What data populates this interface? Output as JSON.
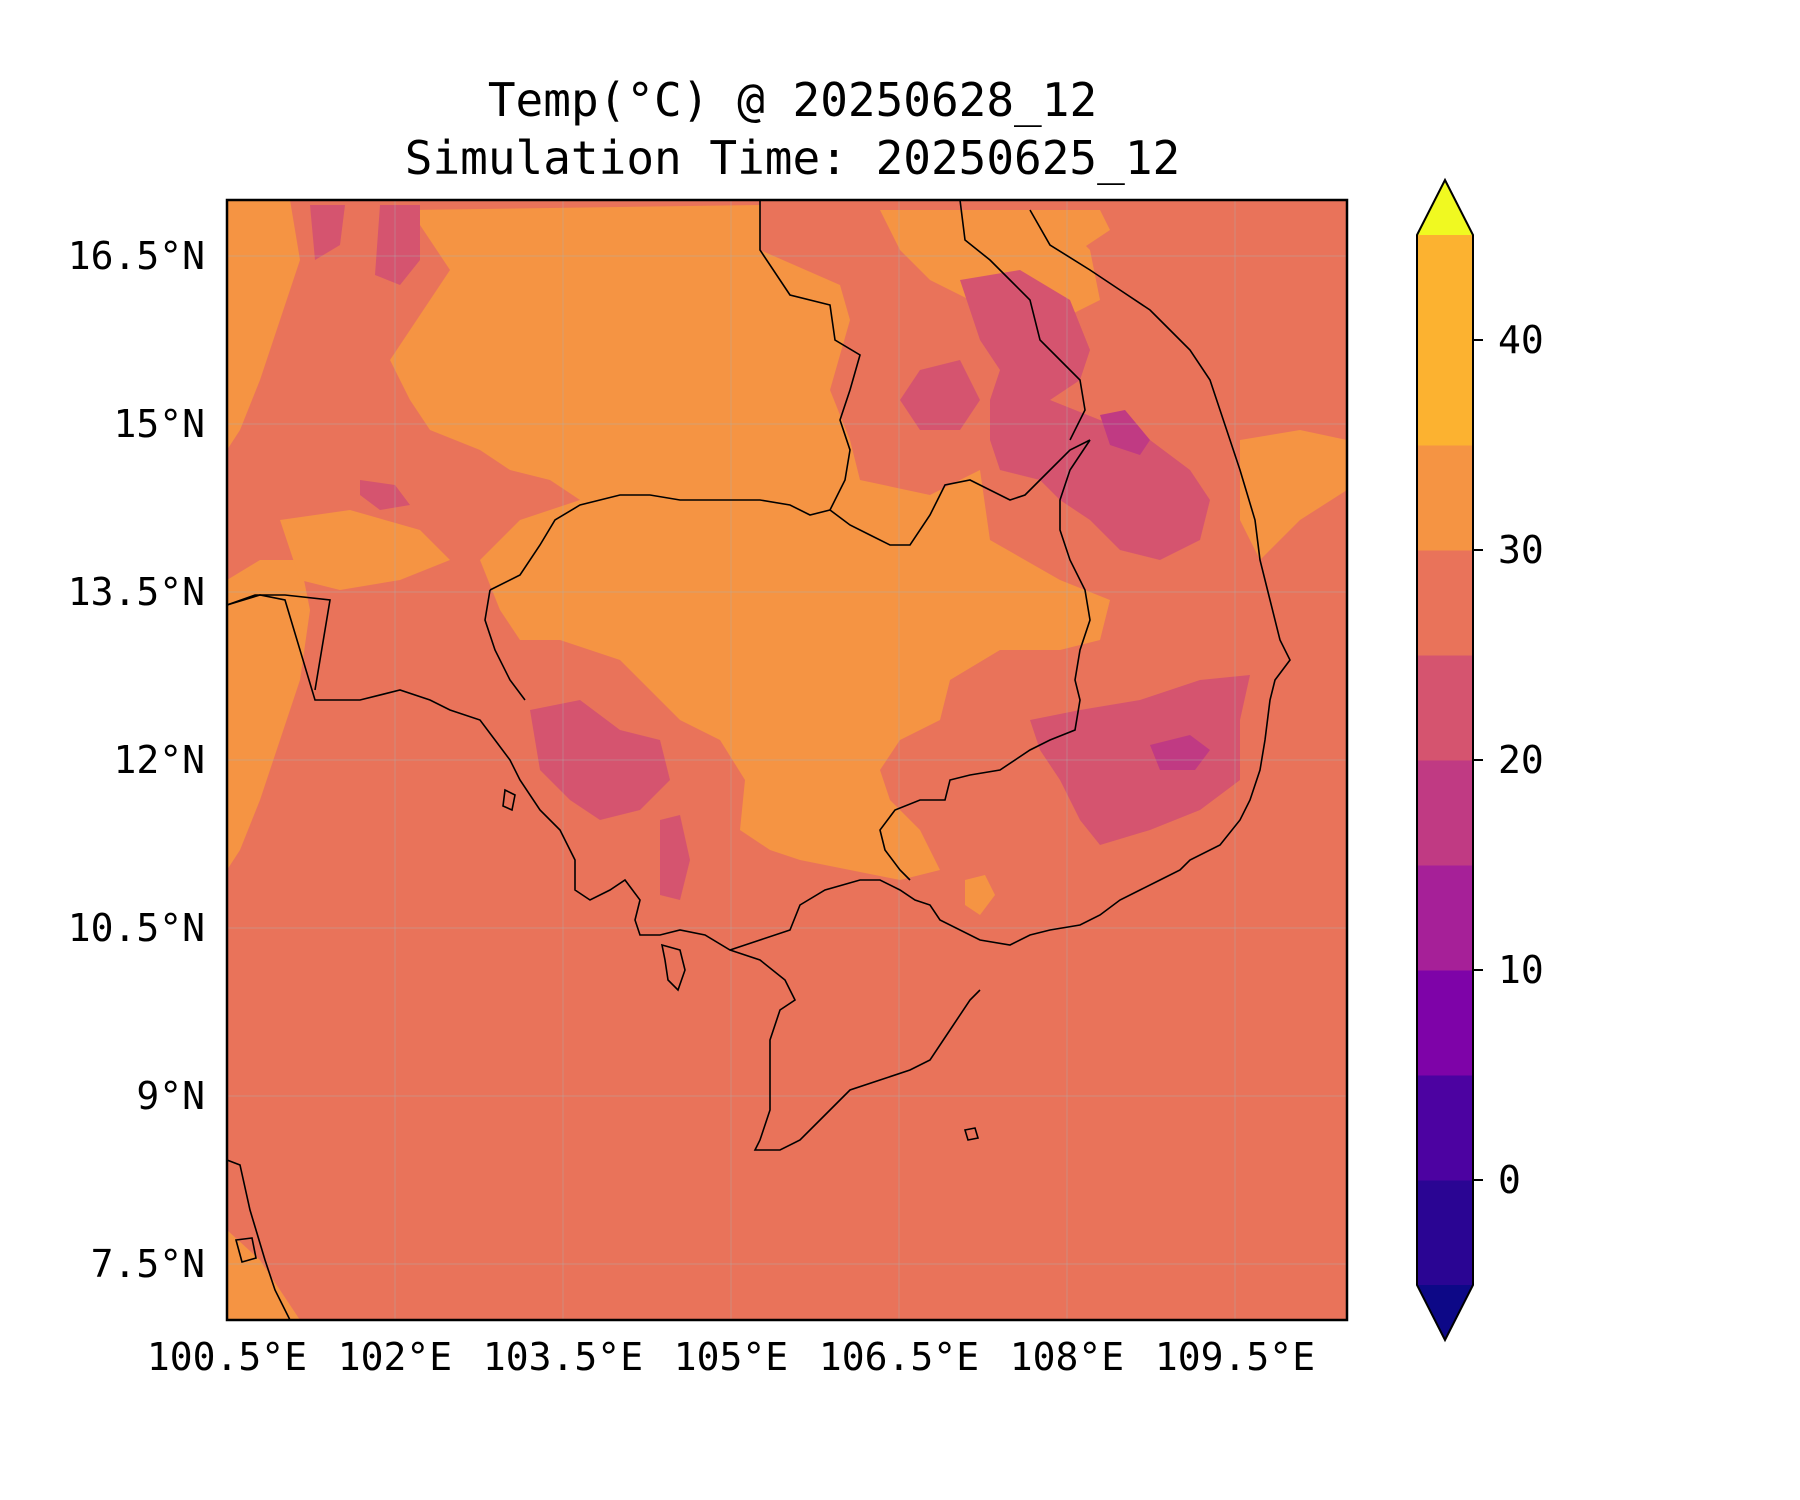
{
  "title": "Temp(°C) @ 20250628_12",
  "subtitle": "Simulation Time: 20250625_12",
  "map": {
    "lon_range": [
      100.5,
      110.5
    ],
    "lat_range": [
      7.0,
      17.0
    ],
    "x_ticks": [
      {
        "value": 100.5,
        "label": "100.5°E"
      },
      {
        "value": 102.0,
        "label": "102°E"
      },
      {
        "value": 103.5,
        "label": "103.5°E"
      },
      {
        "value": 105.0,
        "label": "105°E"
      },
      {
        "value": 106.5,
        "label": "106.5°E"
      },
      {
        "value": 108.0,
        "label": "108°E"
      },
      {
        "value": 109.5,
        "label": "109.5°E"
      }
    ],
    "y_ticks": [
      {
        "value": 16.5,
        "label": "16.5°N"
      },
      {
        "value": 15.0,
        "label": "15°N"
      },
      {
        "value": 13.5,
        "label": "13.5°N"
      },
      {
        "value": 12.0,
        "label": "12°N"
      },
      {
        "value": 10.5,
        "label": "10.5°N"
      },
      {
        "value": 9.0,
        "label": "9°N"
      },
      {
        "value": 7.5,
        "label": "7.5°N"
      }
    ],
    "grid": true,
    "field_colors": {
      "level_25_30": "#e9735a",
      "level_30_35": "#f59443",
      "level_20_25": "#d5546f",
      "level_15_20": "#c03a83"
    },
    "coastline_color": "#000000"
  },
  "colorbar": {
    "levels": [
      -5,
      0,
      5,
      10,
      15,
      20,
      25,
      30,
      35,
      40,
      45
    ],
    "colors": [
      "#0d0887",
      "#2a0593",
      "#4c02a1",
      "#7e03a8",
      "#a62098",
      "#c03a83",
      "#d5546f",
      "#e9735a",
      "#f59443",
      "#fcb230",
      "#f0f921"
    ],
    "extend": "both",
    "ticks": [
      {
        "value": 0,
        "label": "0"
      },
      {
        "value": 10,
        "label": "10"
      },
      {
        "value": 20,
        "label": "20"
      },
      {
        "value": 30,
        "label": "30"
      },
      {
        "value": 40,
        "label": "40"
      }
    ]
  }
}
